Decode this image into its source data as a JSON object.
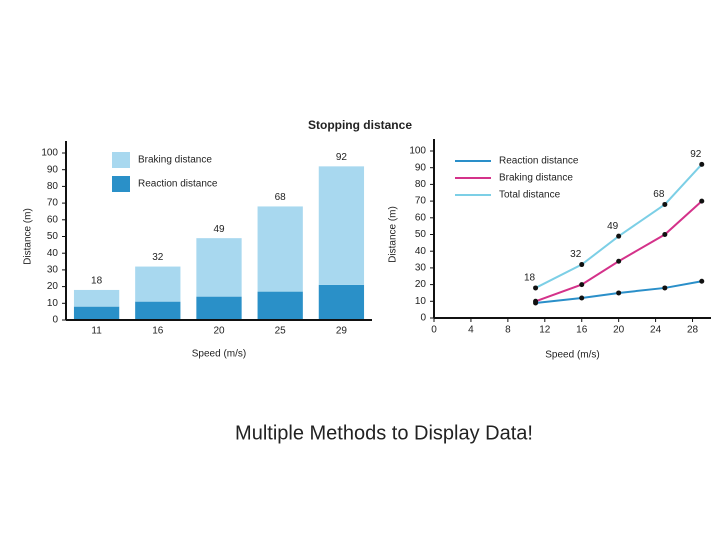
{
  "title": "Stopping distance",
  "caption": "Multiple Methods to Display Data!",
  "chart_data": [
    {
      "type": "bar",
      "stacked": true,
      "categories": [
        "11",
        "16",
        "20",
        "25",
        "29"
      ],
      "series": [
        {
          "name": "Braking distance",
          "color": "#a8d8ef",
          "values": [
            10,
            21,
            35,
            51,
            71
          ]
        },
        {
          "name": "Reaction distance",
          "color": "#2a90c8",
          "values": [
            8,
            11,
            14,
            17,
            21
          ]
        }
      ],
      "totals": [
        18,
        32,
        49,
        68,
        92
      ],
      "xlabel": "Speed (m/s)",
      "ylabel": "Distance (m)",
      "ylim": [
        0,
        100
      ],
      "yticks": [
        0,
        10,
        20,
        30,
        40,
        50,
        60,
        70,
        80,
        90,
        100
      ]
    },
    {
      "type": "line",
      "x": [
        11,
        16,
        20,
        25,
        29
      ],
      "series": [
        {
          "name": "Reaction distance",
          "color": "#2a8fc9",
          "values": [
            9,
            12,
            15,
            18,
            22
          ]
        },
        {
          "name": "Braking distance",
          "color": "#d4328a",
          "values": [
            10,
            20,
            34,
            50,
            70
          ]
        },
        {
          "name": "Total distance",
          "color": "#7ccfe6",
          "values": [
            18,
            32,
            49,
            68,
            92
          ],
          "labeled": true
        }
      ],
      "marker_color": "#111111",
      "xlabel": "Speed (m/s)",
      "ylabel": "Distance (m)",
      "xlim": [
        0,
        30
      ],
      "xticks": [
        0,
        4,
        8,
        12,
        16,
        20,
        24,
        28
      ],
      "ylim": [
        0,
        100
      ],
      "yticks": [
        0,
        10,
        20,
        30,
        40,
        50,
        60,
        70,
        80,
        90,
        100
      ]
    }
  ]
}
